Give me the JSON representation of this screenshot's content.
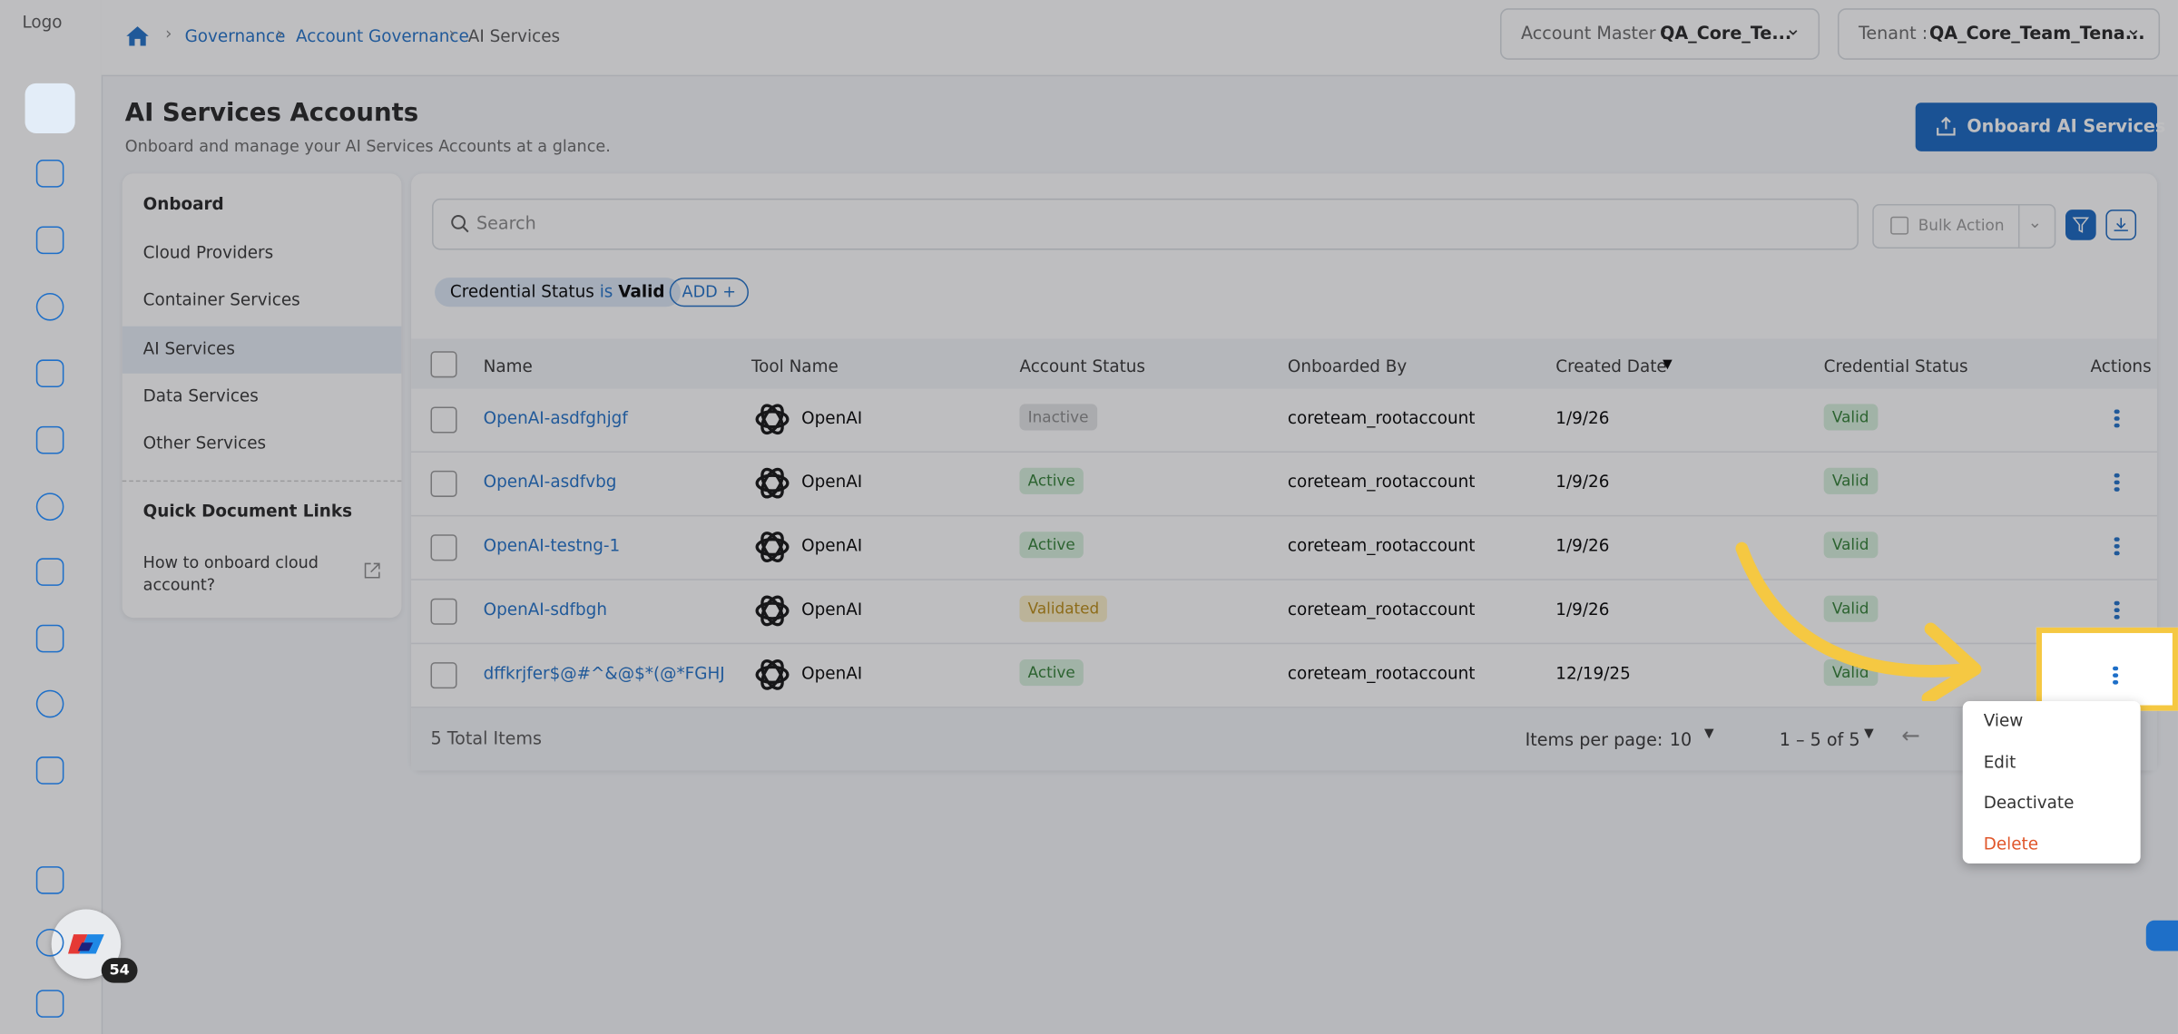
{
  "logo_alt": "Logo",
  "breadcrumb": [
    "Governance",
    "Account Governance",
    "AI Services"
  ],
  "account_master": {
    "label": "Account Master :",
    "value": "QA_Core_Te..."
  },
  "tenant": {
    "label": "Tenant :",
    "value": "QA_Core_Team_Tena..."
  },
  "header": {
    "title": "AI Services Accounts",
    "subtitle": "Onboard and manage your AI Services Accounts at a glance.",
    "button": "Onboard AI Services"
  },
  "sidebar": {
    "section": "Onboard",
    "items": [
      "Cloud Providers",
      "Container Services",
      "AI Services",
      "Data Services",
      "Other Services"
    ],
    "links_title": "Quick Document Links",
    "link": "How to onboard cloud account?"
  },
  "search_placeholder": "Search",
  "bulk_action": "Bulk Action",
  "filter": {
    "field": "Credential Status",
    "op": "is",
    "value": "Valid",
    "add": "ADD"
  },
  "table": {
    "columns": [
      "Name",
      "Tool Name",
      "Account Status",
      "Onboarded By",
      "Created Date",
      "Credential Status",
      "Actions"
    ],
    "rows": [
      [
        "OpenAI-asdfghjgf",
        "OpenAI",
        "Inactive",
        "coreteam_rootaccount",
        "1/9/26",
        "Valid"
      ],
      [
        "OpenAI-asdfvbg",
        "OpenAI",
        "Active",
        "coreteam_rootaccount",
        "1/9/26",
        "Valid"
      ],
      [
        "OpenAI-testng-1",
        "OpenAI",
        "Active",
        "coreteam_rootaccount",
        "1/9/26",
        "Valid"
      ],
      [
        "OpenAI-sdfbgh",
        "OpenAI",
        "Validated",
        "coreteam_rootaccount",
        "1/9/26",
        "Valid"
      ],
      [
        "dffkrjfer$@#^&@$*(@*FGHJ",
        "OpenAI",
        "Active",
        "coreteam_rootaccount",
        "12/19/25",
        "Valid"
      ]
    ]
  },
  "footer": {
    "total": "5 Total Items",
    "items_per_page_label": "Items per page:",
    "items_per_page": "10",
    "range": "1 – 5 of 5"
  },
  "menu": [
    "View",
    "Edit",
    "Deactivate",
    "Delete"
  ],
  "badge": "54"
}
